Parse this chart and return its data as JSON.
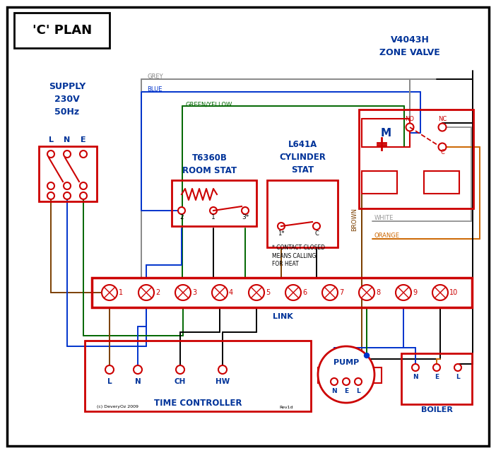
{
  "bg": "#ffffff",
  "BLACK": "#000000",
  "RED": "#cc0000",
  "BLUE": "#0033cc",
  "GREEN": "#006600",
  "GREY": "#888888",
  "BROWN": "#7b3f00",
  "ORANGE": "#cc6600",
  "WHITE_WIRE": "#999999",
  "LBLUE": "#003399",
  "lw": 1.4,
  "figw": 7.02,
  "figh": 6.41,
  "dpi": 100,
  "title": "'C' PLAN",
  "supply_text": "SUPPLY\n230V\n50Hz",
  "room_stat_text": "T6360B\nROOM STAT",
  "cyl_stat_text": "L641A\nCYLINDER\nSTAT",
  "zone_valve_text": "V4043H\nZONE VALVE",
  "time_ctrl_text": "TIME CONTROLLER",
  "pump_text": "PUMP",
  "boiler_text": "BOILER",
  "link_text": "LINK",
  "contact_note": "* CONTACT CLOSED\nMEANS CALLING\nFOR HEAT",
  "copyright": "(c) DeveryOz 2009",
  "rev": "Rev1d"
}
